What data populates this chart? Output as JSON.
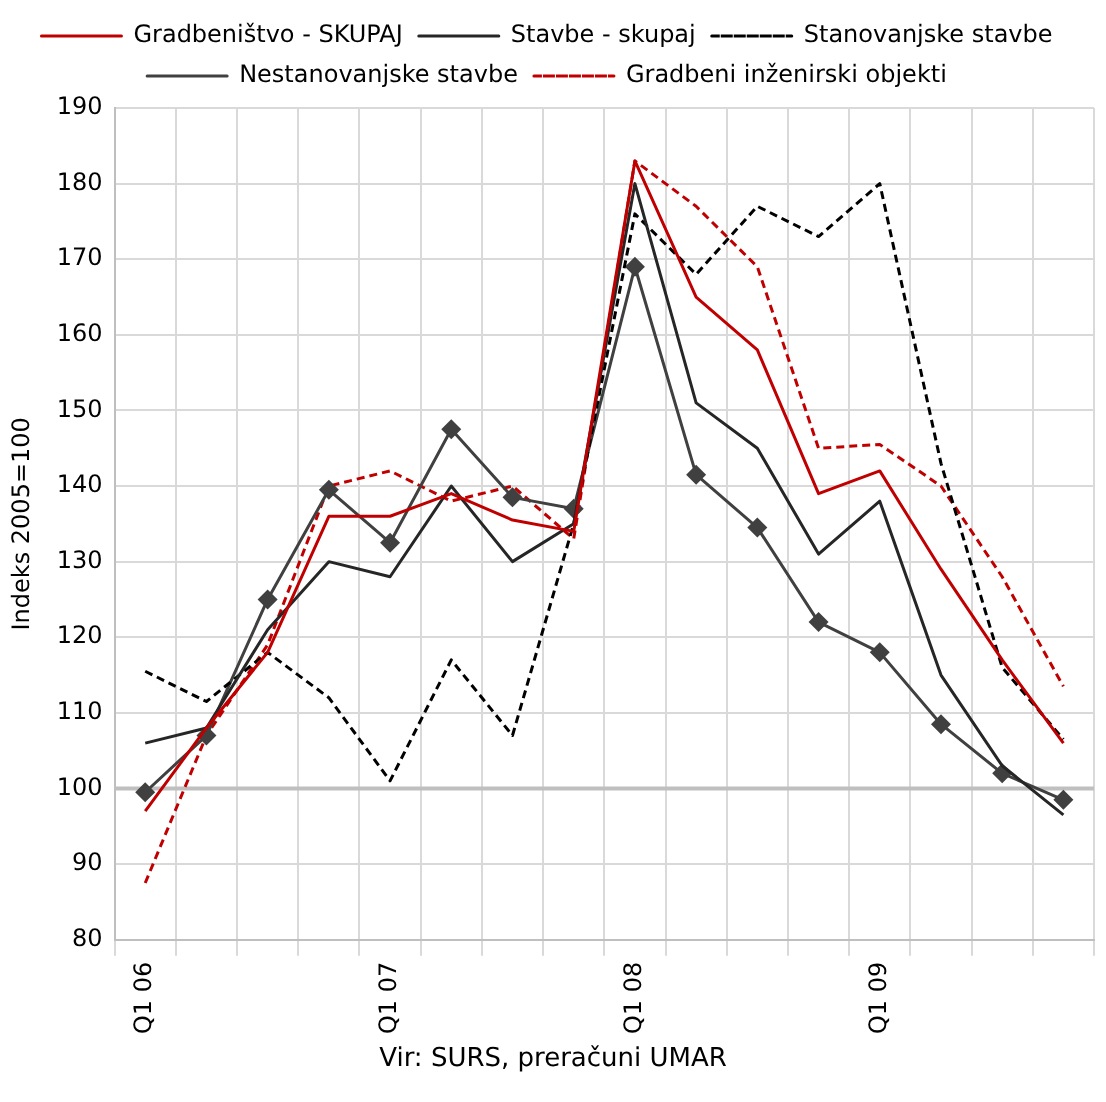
{
  "chart_data": {
    "type": "line",
    "ylabel": "Indeks 2005=100",
    "annotations": [
      "Vir: SURS, preračuni UMAR"
    ],
    "categories": [
      "Q1 06",
      null,
      null,
      null,
      "Q1 07",
      null,
      null,
      null,
      "Q1 08",
      null,
      null,
      null,
      "Q1 09",
      null,
      null,
      null
    ],
    "series": [
      {
        "name": "Gradbeništvo - SKUPAJ",
        "color": "#c00000",
        "line_style": "solid",
        "marker": "none",
        "values": [
          97,
          108,
          118,
          136,
          136,
          139,
          135.5,
          134,
          183,
          165,
          158,
          139,
          142,
          129,
          117,
          106
        ]
      },
      {
        "name": "Stavbe - skupaj",
        "color": "#262626",
        "line_style": "solid",
        "marker": "none",
        "values": [
          106,
          108,
          121,
          130,
          128,
          140,
          130,
          135,
          180,
          151,
          145,
          131,
          138,
          115,
          103,
          96.5
        ]
      },
      {
        "name": "Stanovanjske stavbe",
        "color": "#000000",
        "line_style": "dashed",
        "marker": "none",
        "values": [
          115.5,
          111.5,
          118,
          112,
          101,
          117,
          107,
          135,
          176,
          168,
          177,
          173,
          180,
          143,
          116,
          106.5
        ]
      },
      {
        "name": "Nestanovanjske stavbe",
        "color": "#404040",
        "line_style": "solid",
        "marker": "diamond",
        "values": [
          99.5,
          107,
          125,
          139.5,
          132.5,
          147.5,
          138.5,
          137,
          169,
          141.5,
          134.5,
          122,
          118,
          108.5,
          102,
          98.5
        ]
      },
      {
        "name": "Gradbeni inženirski objekti",
        "color": "#c00000",
        "line_style": "dashed",
        "marker": "none",
        "values": [
          87.5,
          107,
          119,
          140,
          142,
          138,
          140,
          133,
          183,
          177,
          169,
          145,
          145.5,
          140,
          128,
          113.5
        ]
      }
    ],
    "ylim": [
      80,
      190
    ],
    "yticks": [
      80,
      90,
      100,
      110,
      120,
      130,
      140,
      150,
      160,
      170,
      180,
      190
    ],
    "ref_lines": [
      {
        "axis": "y",
        "value": 100,
        "color": "#bfbfbf"
      }
    ],
    "grid": true,
    "legend": "top"
  }
}
